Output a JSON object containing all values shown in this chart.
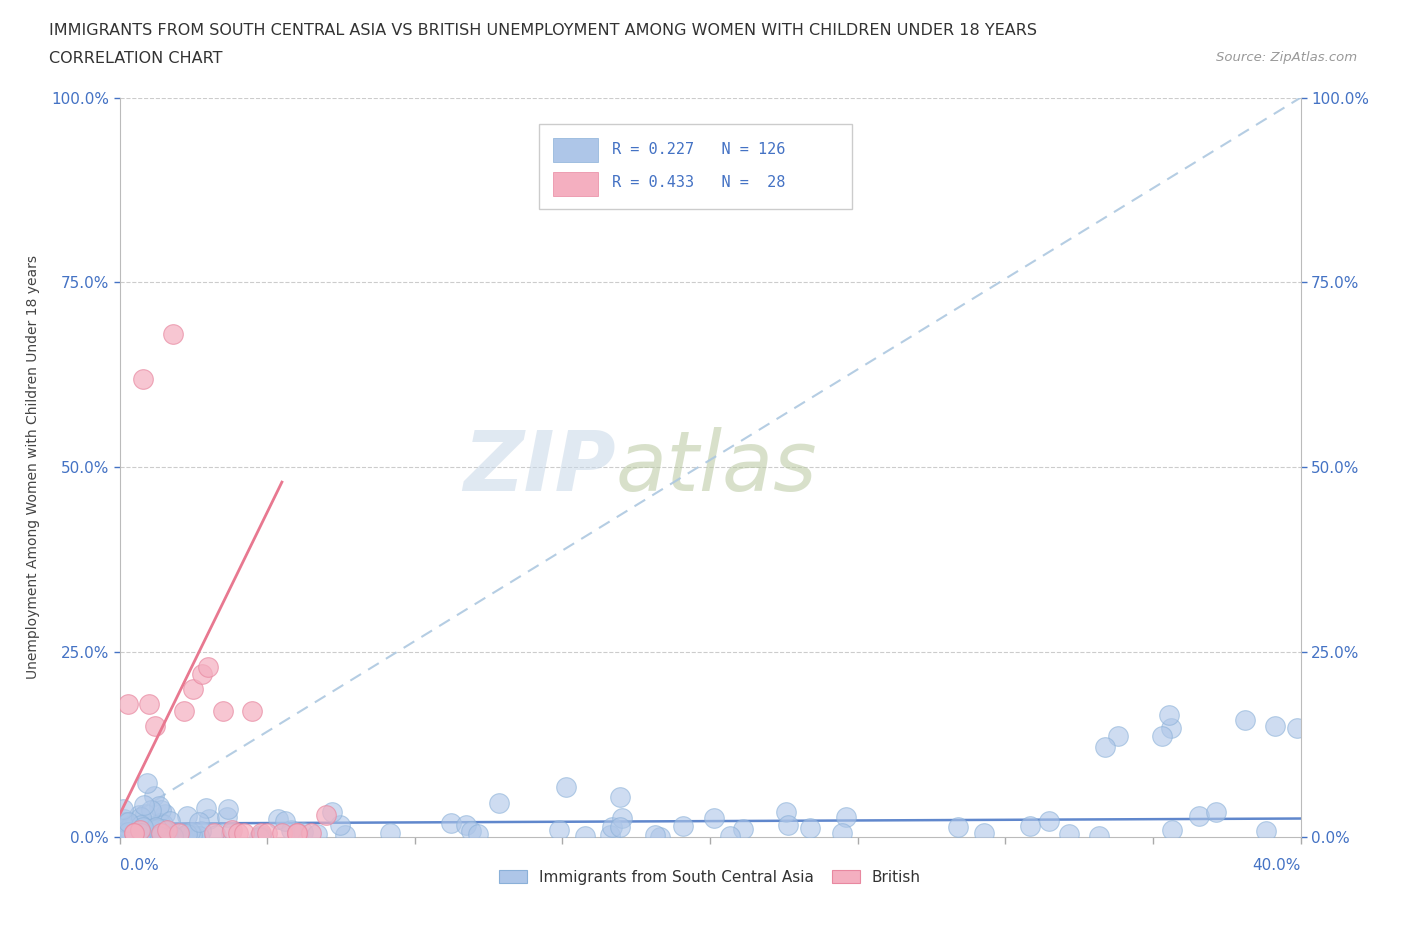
{
  "title_line1": "IMMIGRANTS FROM SOUTH CENTRAL ASIA VS BRITISH UNEMPLOYMENT AMONG WOMEN WITH CHILDREN UNDER 18 YEARS",
  "title_line2": "CORRELATION CHART",
  "source": "Source: ZipAtlas.com",
  "ylabel": "Unemployment Among Women with Children Under 18 years",
  "xmin": 0.0,
  "xmax": 0.4,
  "ymin": 0.0,
  "ymax": 1.0,
  "yticks": [
    0.0,
    0.25,
    0.5,
    0.75,
    1.0
  ],
  "ytick_labels": [
    "0.0%",
    "25.0%",
    "50.0%",
    "75.0%",
    "100.0%"
  ],
  "legend_text_color": "#4472c4",
  "blue_color": "#aec6e8",
  "pink_color": "#f4afc0",
  "blue_R": 0.227,
  "blue_N": 126,
  "pink_R": 0.433,
  "pink_N": 28,
  "watermark_zip_color": "#d0dce8",
  "watermark_atlas_color": "#c8d8b0",
  "xtick_positions": [
    0.0,
    0.05,
    0.1,
    0.15,
    0.2,
    0.25,
    0.3,
    0.35,
    0.4
  ]
}
